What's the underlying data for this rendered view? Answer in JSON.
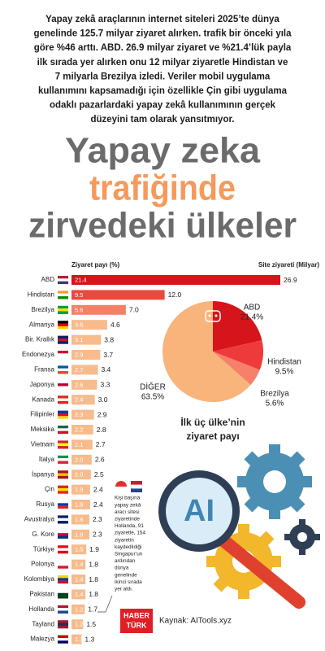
{
  "intro_lines": [
    "Yapay zekâ araçlarının internet siteleri 2025’te dünya",
    "genelinde 125.7 milyar ziyaret alırken. trafik bir önceki yıla",
    "göre %46 arttı. ABD. 26.9 milyar ziyaret ve %21.4’lük payla",
    "ilk sırada yer alırken onu 12 milyar ziyaretle Hindistan ve",
    "7 milyarla Brezilya izledi. Veriler mobil uygulama",
    "kullanımını kapsamadığı için özellikle Çin gibi uygulama",
    "odaklı pazarlardaki yapay zekâ kullanımının gerçek",
    "düzeyini tam olarak yansıtmıyor."
  ],
  "headline_lines": [
    "Yapay zeka",
    "trafiğinde",
    "zirvedeki ülkeler"
  ],
  "chart_data": [
    {
      "type": "bar",
      "orientation": "horizontal",
      "categories": [
        "ABD",
        "Hindistan",
        "Brezilya",
        "Almanya",
        "Bir. Krallık",
        "Endonezya",
        "Fransa",
        "Japonya",
        "Kanada",
        "Filipinler",
        "Meksika",
        "Vietnam",
        "İtalya",
        "İspanya",
        "Çin",
        "Rusya",
        "Avustralya",
        "G. Kore",
        "Türkiye",
        "Polonya",
        "Kolombiya",
        "Pakistan",
        "Hollanda",
        "Tayland",
        "Malezya"
      ],
      "series": [
        {
          "name": "Ziyaret payı (%)",
          "values": [
            21.4,
            9.5,
            5.6,
            3.6,
            3.1,
            2.9,
            2.7,
            2.6,
            2.4,
            2.3,
            2.2,
            2.1,
            2.0,
            2.0,
            1.9,
            1.9,
            1.8,
            1.8,
            1.5,
            1.4,
            1.4,
            1.4,
            1.2,
            1.2,
            1.1
          ],
          "value_labels": [
            "21.4",
            "9.5",
            "5.6",
            "3.6",
            "3.1",
            "2.9",
            "2.7",
            "2.6",
            "2.4",
            "2.3",
            "2.2",
            "2.1",
            "2.0",
            "2.0",
            "1.9",
            "1.9",
            "1.8",
            "1.8",
            "1.5",
            "1.4",
            "1.4",
            "1.4",
            "1.2",
            "1.2",
            "1.1"
          ]
        },
        {
          "name": "Site ziyareti (Milyar)",
          "values": [
            26.9,
            12.0,
            7.0,
            4.6,
            3.8,
            3.7,
            3.4,
            3.3,
            3.0,
            2.9,
            2.8,
            2.7,
            2.6,
            2.5,
            2.4,
            2.4,
            2.3,
            2.3,
            1.9,
            1.8,
            1.8,
            1.8,
            1.7,
            1.5,
            1.3
          ],
          "value_labels": [
            "26.9",
            "12.0",
            "7.0",
            "4.6",
            "3.8",
            "3.7",
            "3.4",
            "3.3",
            "3.0",
            "2.9",
            "2.8",
            "2.7",
            "2.6",
            "2.5",
            "2.4",
            "2.4",
            "2.3",
            "2.3",
            "1.9",
            "1.8",
            "1.8",
            "1.8",
            "1.7",
            "1.5",
            "1.3"
          ],
          "colors": [
            "#d5151b",
            "#ea4a3e",
            "#f48068",
            "#f7bb8c",
            "#f7bb8c",
            "#f7bb8c",
            "#f7bb8c",
            "#f7bb8c",
            "#f7bb8c",
            "#f7bb8c",
            "#f7bb8c",
            "#f7bb8c",
            "#f7bb8c",
            "#f7bb8c",
            "#f7bb8c",
            "#f7bb8c",
            "#f7bb8c",
            "#f7bb8c",
            "#f7bb8c",
            "#f7bb8c",
            "#f7bb8c",
            "#f7bb8c",
            "#f7bb8c",
            "#f7bb8c",
            "#f7bb8c"
          ]
        }
      ]
    },
    {
      "type": "pie",
      "categories": [
        "ABD",
        "Hindistan",
        "Brezilya",
        "DİĞER"
      ],
      "values": [
        21.4,
        9.5,
        5.6,
        63.5
      ],
      "value_labels": [
        "21.4%",
        "9.5%",
        "5.6%",
        "63.5%"
      ],
      "colors": [
        "#d5151b",
        "#ee3a3a",
        "#f6806a",
        "#f9b47c"
      ],
      "caption_lines": [
        "İlk üç ülke’nin",
        "ziyaret payı"
      ]
    }
  ],
  "illustration_text": "AI",
  "note_lines": [
    "Kişi başına",
    "yapay zekâ",
    "aracı sitesi",
    "ziyaretinde",
    "Hollanda, 91",
    "ziyaretle, 154",
    "ziyaretin",
    "kaydedildiği",
    "Singapur’un",
    "ardından",
    "dünya",
    "genelinde",
    "ikinci sırada",
    "yer aldı."
  ],
  "logo_lines": [
    "HABER",
    "TÜRK"
  ],
  "source": "Kaynak: AITools.xyz"
}
